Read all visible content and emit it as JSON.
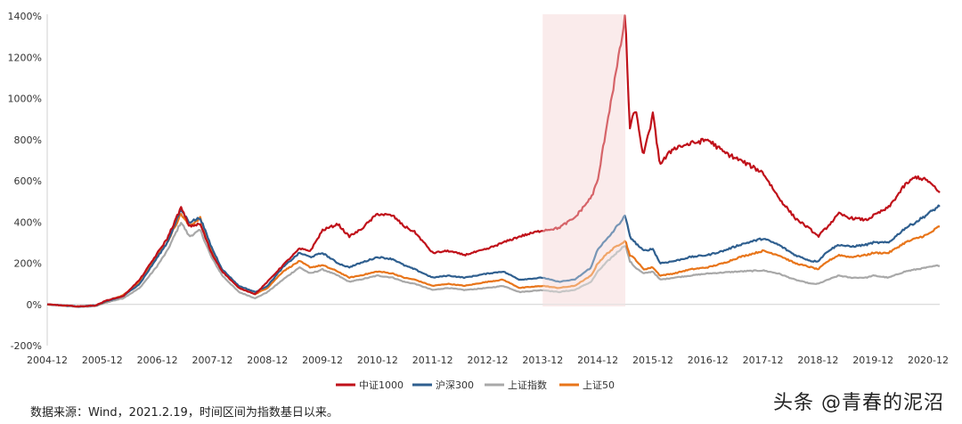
{
  "chart_data": {
    "type": "line",
    "title": "",
    "xlabel": "",
    "ylabel": "",
    "ylim": [
      -200,
      1400
    ],
    "y_ticks": [
      -200,
      0,
      200,
      400,
      600,
      800,
      1000,
      1200,
      1400
    ],
    "y_tick_labels": [
      "-200%",
      "0%",
      "200%",
      "400%",
      "600%",
      "800%",
      "1000%",
      "1200%",
      "1400%"
    ],
    "x_tick_labels": [
      "2004-12",
      "2005-12",
      "2006-12",
      "2007-12",
      "2008-12",
      "2009-12",
      "2010-12",
      "2011-12",
      "2012-12",
      "2013-12",
      "2014-12",
      "2015-12",
      "2016-12",
      "2017-12",
      "2018-12",
      "2019-12",
      "2020-12"
    ],
    "xlim": [
      2004.92,
      2021.13
    ],
    "grid": false,
    "highlight_region": {
      "from": 2013.92,
      "to": 2015.42,
      "color": "#f5d7d7"
    },
    "series": [
      {
        "name": "中证1000",
        "color": "#c0111a",
        "points": [
          [
            2004.92,
            0
          ],
          [
            2005.2,
            -5
          ],
          [
            2005.5,
            -10
          ],
          [
            2005.8,
            -5
          ],
          [
            2006.0,
            20
          ],
          [
            2006.3,
            40
          ],
          [
            2006.6,
            120
          ],
          [
            2006.9,
            240
          ],
          [
            2007.1,
            320
          ],
          [
            2007.35,
            470
          ],
          [
            2007.5,
            380
          ],
          [
            2007.7,
            390
          ],
          [
            2007.9,
            250
          ],
          [
            2008.1,
            160
          ],
          [
            2008.4,
            80
          ],
          [
            2008.7,
            50
          ],
          [
            2008.92,
            110
          ],
          [
            2009.2,
            190
          ],
          [
            2009.5,
            270
          ],
          [
            2009.7,
            260
          ],
          [
            2009.92,
            360
          ],
          [
            2010.2,
            390
          ],
          [
            2010.4,
            330
          ],
          [
            2010.6,
            360
          ],
          [
            2010.92,
            440
          ],
          [
            2011.2,
            430
          ],
          [
            2011.4,
            380
          ],
          [
            2011.6,
            350
          ],
          [
            2011.92,
            250
          ],
          [
            2012.2,
            260
          ],
          [
            2012.5,
            240
          ],
          [
            2012.92,
            270
          ],
          [
            2013.2,
            300
          ],
          [
            2013.5,
            330
          ],
          [
            2013.92,
            360
          ],
          [
            2014.2,
            370
          ],
          [
            2014.5,
            420
          ],
          [
            2014.8,
            520
          ],
          [
            2014.92,
            600
          ],
          [
            2015.1,
            900
          ],
          [
            2015.3,
            1200
          ],
          [
            2015.42,
            1400
          ],
          [
            2015.5,
            850
          ],
          [
            2015.6,
            950
          ],
          [
            2015.75,
            720
          ],
          [
            2015.92,
            920
          ],
          [
            2016.05,
            680
          ],
          [
            2016.3,
            760
          ],
          [
            2016.6,
            780
          ],
          [
            2016.92,
            800
          ],
          [
            2017.2,
            740
          ],
          [
            2017.5,
            700
          ],
          [
            2017.92,
            640
          ],
          [
            2018.2,
            520
          ],
          [
            2018.5,
            420
          ],
          [
            2018.8,
            360
          ],
          [
            2018.92,
            330
          ],
          [
            2019.1,
            380
          ],
          [
            2019.3,
            440
          ],
          [
            2019.5,
            420
          ],
          [
            2019.8,
            410
          ],
          [
            2019.92,
            430
          ],
          [
            2020.2,
            470
          ],
          [
            2020.5,
            580
          ],
          [
            2020.7,
            620
          ],
          [
            2020.92,
            600
          ],
          [
            2021.13,
            540
          ]
        ]
      },
      {
        "name": "沪深300",
        "color": "#2f5f8f",
        "points": [
          [
            2004.92,
            0
          ],
          [
            2005.2,
            -5
          ],
          [
            2005.5,
            -10
          ],
          [
            2005.8,
            -5
          ],
          [
            2006.0,
            15
          ],
          [
            2006.3,
            40
          ],
          [
            2006.6,
            100
          ],
          [
            2006.9,
            220
          ],
          [
            2007.1,
            300
          ],
          [
            2007.35,
            460
          ],
          [
            2007.5,
            400
          ],
          [
            2007.7,
            420
          ],
          [
            2007.9,
            280
          ],
          [
            2008.1,
            170
          ],
          [
            2008.4,
            90
          ],
          [
            2008.7,
            60
          ],
          [
            2008.92,
            90
          ],
          [
            2009.2,
            180
          ],
          [
            2009.5,
            250
          ],
          [
            2009.7,
            230
          ],
          [
            2009.92,
            250
          ],
          [
            2010.2,
            200
          ],
          [
            2010.4,
            180
          ],
          [
            2010.6,
            200
          ],
          [
            2010.92,
            230
          ],
          [
            2011.2,
            220
          ],
          [
            2011.4,
            190
          ],
          [
            2011.6,
            170
          ],
          [
            2011.92,
            130
          ],
          [
            2012.2,
            140
          ],
          [
            2012.5,
            130
          ],
          [
            2012.92,
            150
          ],
          [
            2013.2,
            160
          ],
          [
            2013.5,
            120
          ],
          [
            2013.92,
            130
          ],
          [
            2014.2,
            110
          ],
          [
            2014.5,
            120
          ],
          [
            2014.8,
            180
          ],
          [
            2014.92,
            270
          ],
          [
            2015.1,
            320
          ],
          [
            2015.3,
            390
          ],
          [
            2015.42,
            430
          ],
          [
            2015.5,
            330
          ],
          [
            2015.6,
            300
          ],
          [
            2015.75,
            260
          ],
          [
            2015.92,
            270
          ],
          [
            2016.05,
            200
          ],
          [
            2016.3,
            210
          ],
          [
            2016.6,
            230
          ],
          [
            2016.92,
            240
          ],
          [
            2017.2,
            260
          ],
          [
            2017.5,
            290
          ],
          [
            2017.92,
            320
          ],
          [
            2018.2,
            290
          ],
          [
            2018.5,
            240
          ],
          [
            2018.8,
            210
          ],
          [
            2018.92,
            210
          ],
          [
            2019.1,
            260
          ],
          [
            2019.3,
            290
          ],
          [
            2019.5,
            280
          ],
          [
            2019.8,
            290
          ],
          [
            2019.92,
            300
          ],
          [
            2020.2,
            300
          ],
          [
            2020.5,
            370
          ],
          [
            2020.7,
            400
          ],
          [
            2020.92,
            440
          ],
          [
            2021.13,
            480
          ]
        ]
      },
      {
        "name": "上证指数",
        "color": "#a8a8a8",
        "points": [
          [
            2004.92,
            0
          ],
          [
            2005.2,
            -5
          ],
          [
            2005.5,
            -12
          ],
          [
            2005.8,
            -8
          ],
          [
            2006.0,
            10
          ],
          [
            2006.3,
            30
          ],
          [
            2006.6,
            80
          ],
          [
            2006.9,
            180
          ],
          [
            2007.1,
            260
          ],
          [
            2007.35,
            400
          ],
          [
            2007.5,
            330
          ],
          [
            2007.7,
            360
          ],
          [
            2007.9,
            230
          ],
          [
            2008.1,
            140
          ],
          [
            2008.4,
            60
          ],
          [
            2008.7,
            30
          ],
          [
            2008.92,
            60
          ],
          [
            2009.2,
            120
          ],
          [
            2009.5,
            180
          ],
          [
            2009.7,
            150
          ],
          [
            2009.92,
            170
          ],
          [
            2010.2,
            140
          ],
          [
            2010.4,
            110
          ],
          [
            2010.6,
            120
          ],
          [
            2010.92,
            140
          ],
          [
            2011.2,
            130
          ],
          [
            2011.4,
            110
          ],
          [
            2011.6,
            100
          ],
          [
            2011.92,
            70
          ],
          [
            2012.2,
            80
          ],
          [
            2012.5,
            70
          ],
          [
            2012.92,
            80
          ],
          [
            2013.2,
            90
          ],
          [
            2013.5,
            60
          ],
          [
            2013.92,
            70
          ],
          [
            2014.2,
            60
          ],
          [
            2014.5,
            70
          ],
          [
            2014.8,
            110
          ],
          [
            2014.92,
            160
          ],
          [
            2015.1,
            210
          ],
          [
            2015.3,
            260
          ],
          [
            2015.42,
            290
          ],
          [
            2015.5,
            210
          ],
          [
            2015.6,
            180
          ],
          [
            2015.75,
            150
          ],
          [
            2015.92,
            160
          ],
          [
            2016.05,
            120
          ],
          [
            2016.3,
            130
          ],
          [
            2016.6,
            140
          ],
          [
            2016.92,
            150
          ],
          [
            2017.2,
            155
          ],
          [
            2017.5,
            160
          ],
          [
            2017.92,
            165
          ],
          [
            2018.2,
            150
          ],
          [
            2018.5,
            120
          ],
          [
            2018.8,
            100
          ],
          [
            2018.92,
            100
          ],
          [
            2019.1,
            120
          ],
          [
            2019.3,
            140
          ],
          [
            2019.5,
            130
          ],
          [
            2019.8,
            130
          ],
          [
            2019.92,
            140
          ],
          [
            2020.2,
            130
          ],
          [
            2020.5,
            160
          ],
          [
            2020.7,
            170
          ],
          [
            2020.92,
            180
          ],
          [
            2021.13,
            190
          ]
        ]
      },
      {
        "name": "上证50",
        "color": "#e8751a",
        "points": [
          [
            2004.92,
            0
          ],
          [
            2005.2,
            -5
          ],
          [
            2005.5,
            -10
          ],
          [
            2005.8,
            -5
          ],
          [
            2006.0,
            15
          ],
          [
            2006.3,
            45
          ],
          [
            2006.6,
            110
          ],
          [
            2006.9,
            230
          ],
          [
            2007.1,
            300
          ],
          [
            2007.35,
            440
          ],
          [
            2007.5,
            380
          ],
          [
            2007.7,
            420
          ],
          [
            2007.9,
            260
          ],
          [
            2008.1,
            160
          ],
          [
            2008.4,
            80
          ],
          [
            2008.7,
            50
          ],
          [
            2008.92,
            80
          ],
          [
            2009.2,
            160
          ],
          [
            2009.5,
            210
          ],
          [
            2009.7,
            180
          ],
          [
            2009.92,
            190
          ],
          [
            2010.2,
            160
          ],
          [
            2010.4,
            130
          ],
          [
            2010.6,
            140
          ],
          [
            2010.92,
            160
          ],
          [
            2011.2,
            150
          ],
          [
            2011.4,
            130
          ],
          [
            2011.6,
            120
          ],
          [
            2011.92,
            90
          ],
          [
            2012.2,
            100
          ],
          [
            2012.5,
            90
          ],
          [
            2012.92,
            110
          ],
          [
            2013.2,
            120
          ],
          [
            2013.5,
            80
          ],
          [
            2013.92,
            90
          ],
          [
            2014.2,
            80
          ],
          [
            2014.5,
            90
          ],
          [
            2014.8,
            140
          ],
          [
            2014.92,
            200
          ],
          [
            2015.1,
            250
          ],
          [
            2015.3,
            290
          ],
          [
            2015.42,
            310
          ],
          [
            2015.5,
            240
          ],
          [
            2015.6,
            220
          ],
          [
            2015.75,
            170
          ],
          [
            2015.92,
            180
          ],
          [
            2016.05,
            140
          ],
          [
            2016.3,
            150
          ],
          [
            2016.6,
            170
          ],
          [
            2016.92,
            180
          ],
          [
            2017.2,
            200
          ],
          [
            2017.5,
            230
          ],
          [
            2017.92,
            260
          ],
          [
            2018.2,
            240
          ],
          [
            2018.5,
            200
          ],
          [
            2018.8,
            180
          ],
          [
            2018.92,
            170
          ],
          [
            2019.1,
            210
          ],
          [
            2019.3,
            240
          ],
          [
            2019.5,
            230
          ],
          [
            2019.8,
            240
          ],
          [
            2019.92,
            250
          ],
          [
            2020.2,
            250
          ],
          [
            2020.5,
            300
          ],
          [
            2020.7,
            320
          ],
          [
            2020.92,
            340
          ],
          [
            2021.13,
            380
          ]
        ]
      }
    ],
    "legend": [
      "中证1000",
      "沪深300",
      "上证指数",
      "上证50"
    ],
    "legend_position": "bottom-center"
  },
  "footer": {
    "source_note": "数据来源：Wind，2021.2.19，时间区间为指数基日以来。",
    "watermark": "头条 @青春的泥沼"
  }
}
